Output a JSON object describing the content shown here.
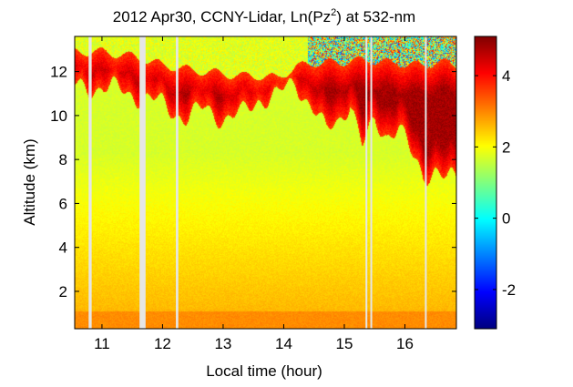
{
  "chart_data": {
    "type": "heatmap",
    "title": "2012 Apr30, CCNY-Lidar, Ln(Pz",
    "title_superscript": "2",
    "title_suffix": ") at 532-nm",
    "xlabel": "Local time (hour)",
    "ylabel": "Altitude (km)",
    "xlim": [
      10.55,
      16.85
    ],
    "ylim": [
      0.3,
      13.6
    ],
    "x_ticks": [
      11,
      12,
      13,
      14,
      15,
      16
    ],
    "y_ticks": [
      2,
      4,
      6,
      8,
      10,
      12
    ],
    "colorbar": {
      "range": [
        -3.1,
        5.1
      ],
      "ticks": [
        -2,
        0,
        2,
        4
      ],
      "colormap": "jet"
    },
    "gaps": [
      {
        "x": 10.78,
        "width": 0.05
      },
      {
        "x": 11.62,
        "width": 0.1
      },
      {
        "x": 12.22,
        "width": 0.04
      },
      {
        "x": 15.35,
        "width": 0.03
      },
      {
        "x": 15.43,
        "width": 0.02
      },
      {
        "x": 16.33,
        "width": 0.02
      }
    ],
    "features": {
      "background_surface": 2.7,
      "background_upper": 1.7,
      "noise_onset_hour": 14.4,
      "aerosol_layer_top_km": 1.1,
      "cloud_base_km": [
        {
          "x": 10.6,
          "base": 11.3,
          "top": 12.9
        },
        {
          "x": 11.0,
          "base": 11.3,
          "top": 12.9
        },
        {
          "x": 11.5,
          "base": 11.0,
          "top": 12.7
        },
        {
          "x": 12.0,
          "base": 10.5,
          "top": 12.3
        },
        {
          "x": 12.4,
          "base": 9.9,
          "top": 12.1
        },
        {
          "x": 12.7,
          "base": 10.3,
          "top": 12.0
        },
        {
          "x": 13.0,
          "base": 9.9,
          "top": 11.9
        },
        {
          "x": 13.3,
          "base": 10.0,
          "top": 11.8
        },
        {
          "x": 13.6,
          "base": 10.8,
          "top": 11.8
        },
        {
          "x": 13.9,
          "base": 10.9,
          "top": 11.7
        },
        {
          "x": 14.2,
          "base": 11.5,
          "top": 12.2
        },
        {
          "x": 14.5,
          "base": 10.3,
          "top": 12.4
        },
        {
          "x": 14.7,
          "base": 9.2,
          "top": 12.4
        },
        {
          "x": 14.9,
          "base": 9.8,
          "top": 12.4
        },
        {
          "x": 15.1,
          "base": 10.7,
          "top": 12.5
        },
        {
          "x": 15.3,
          "base": 8.5,
          "top": 12.5
        },
        {
          "x": 15.5,
          "base": 9.7,
          "top": 12.5
        },
        {
          "x": 15.7,
          "base": 9.2,
          "top": 12.4
        },
        {
          "x": 15.9,
          "base": 9.5,
          "top": 12.4
        },
        {
          "x": 16.1,
          "base": 8.2,
          "top": 12.3
        },
        {
          "x": 16.3,
          "base": 7.3,
          "top": 12.3
        },
        {
          "x": 16.5,
          "base": 7.6,
          "top": 12.4
        },
        {
          "x": 16.7,
          "base": 7.0,
          "top": 12.4
        },
        {
          "x": 16.85,
          "base": 7.1,
          "top": 12.3
        }
      ]
    }
  }
}
